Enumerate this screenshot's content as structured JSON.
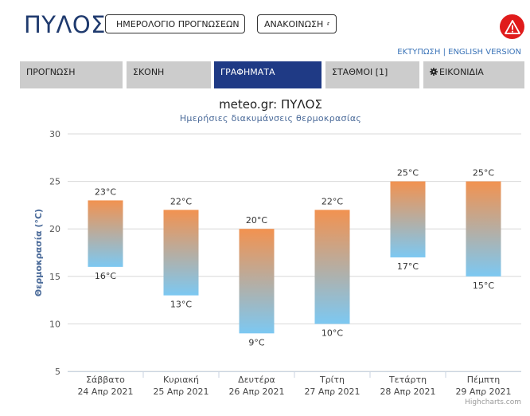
{
  "header": {
    "city": "ΠΥΛΟΣ",
    "calendar_button": "ΗΜΕΡΟΛΟΓΙΟ ΠΡΟΓΝΩΣΕΩΝ",
    "announcement_button": "ΑΝΑΚΟΙΝΩΣΗ",
    "print_link": "ΕΚΤΥΠΩΣΗ",
    "link_separator": " | ",
    "english_link": "ENGLISH VERSION",
    "warning_color": "#e01b1b"
  },
  "tabs": [
    {
      "label": "ΠΡΟΓΝΩΣΗ",
      "active": false
    },
    {
      "label": "ΣΚΟΝΗ",
      "active": false
    },
    {
      "label": "ΓΡΑΦΗΜΑΤΑ",
      "active": true
    },
    {
      "label": "ΣΤΑΘΜΟΙ [1]",
      "active": false
    },
    {
      "label": "ΕΙΚΟΝΙΔΙΑ",
      "active": false,
      "icon": "gear-icon"
    }
  ],
  "chart_data": {
    "type": "bar",
    "subtype": "columnrange",
    "title": "meteo.gr: ΠΥΛΟΣ",
    "subtitle": "Ημερήσιες διακυμάνσεις θερμοκρασίας",
    "ylabel": "Θερμοκρασία (°C)",
    "ylim": [
      5,
      30
    ],
    "yticks": [
      5,
      10,
      15,
      20,
      25,
      30
    ],
    "grid": true,
    "categories": [
      {
        "day": "Σάββατο",
        "date": "24 Απρ 2021"
      },
      {
        "day": "Κυριακή",
        "date": "25 Απρ 2021"
      },
      {
        "day": "Δευτέρα",
        "date": "26 Απρ 2021"
      },
      {
        "day": "Τρίτη",
        "date": "27 Απρ 2021"
      },
      {
        "day": "Τετάρτη",
        "date": "28 Απρ 2021"
      },
      {
        "day": "Πέμπτη",
        "date": "29 Απρ 2021"
      }
    ],
    "series": [
      {
        "low": 16,
        "high": 23
      },
      {
        "low": 13,
        "high": 22
      },
      {
        "low": 9,
        "high": 20
      },
      {
        "low": 10,
        "high": 22
      },
      {
        "low": 17,
        "high": 25
      },
      {
        "low": 15,
        "high": 25
      }
    ],
    "unit": "°C",
    "colors": {
      "top": "#f29250",
      "bottom": "#7cc8f2",
      "grid": "#d8d8d8",
      "axis_label": "#4a6a99"
    },
    "credits": "Highcharts.com"
  }
}
